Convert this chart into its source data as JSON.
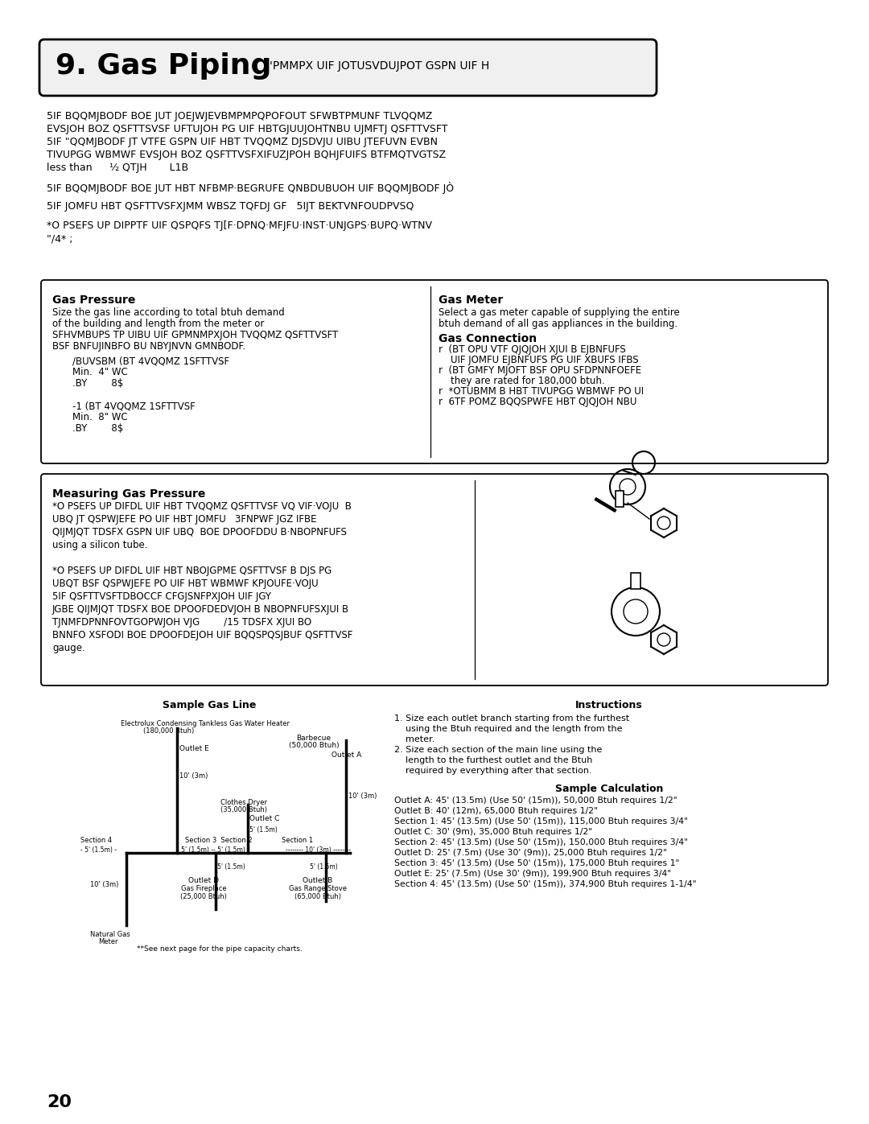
{
  "page_bg": "#ffffff",
  "title_box_text": "9. Gas Piping",
  "title_box_subtext": "'PMMPX UIF JOTUSVDUJPOT GSPN UIF H",
  "body_lines": [
    "5IF BQQMJBODF BOE JUT JOEJWJEVBMPMPQPOFOUT SFWBTPMUNF TLVQQMZ",
    "EVSJOH BOZ QSFTTSVSF UFTUJOH PG UIF HBTGJUUJOHTNBU UJMFTJ QSFTTVSFT",
    "5IF \"QQMJBODF JT VTFE GSPN UIF HBT TVQQMZ DJSDVJU UIBU JTEFUVN EVBN",
    "TIVUPGG WBMWF EVSJOH BOZ QSFTTVSFXIFUZJPOH BQHJFUIFS BTFMQTVGTSZ"
  ],
  "body_line_fraction": "less than ½ QTJH       L1B",
  "body_line2": "5IF BQQMJBODF BOE JUT HBT NFBMP·BEGRUFE QNBDUBUOH UIF BQQMJBODF JÒ",
  "body_line3": "5IF JOMFU HBT QSFTTVSFXJMM WBSZ TQFDJ GF   5IJT BEKTVNFOUDPVSQ",
  "body_line4": "*O PSEFS UP DIPPTF UIF QSPQFS TJ[F·DPNQ·MFJFU·INST·UNJGPS·BUPQ·WTNV",
  "body_line5": "\"/4* ;",
  "box1_header_left": "Gas Pressure",
  "box1_header_right": "Gas Meter",
  "box1_left_lines": [
    "Size the gas line according to total btuh demand",
    "of the building and length from the meter or",
    "SFHVMBUPS TP UIBU UIF GPMNMPXJOH TVQQMZ QSFTTVSFT",
    "BSF BNFUJINBFO BU NBYJNVN GMNBODF."
  ],
  "box1_left_indent_lines": [
    "/BUVSBM (BT 4VQQMZ 1SFTTVSF",
    "Min.  4\" WC",
    ".BY        8$",
    "",
    "-1 (BT 4VQQMZ 1SFTTVSF",
    "Min.  8\" WC",
    ".BY        8$"
  ],
  "box1_right_lines": [
    "Select a gas meter capable of supplying the entire",
    "btuh demand of all gas appliances in the building."
  ],
  "box1_right_header2": "Gas Connection",
  "box1_right_lines2": [
    "r  (BT OPU VTF QJQJOH XJUI B EJBNFUFS",
    "    UIF JOMFU EJBNFUFS PG UIF XBUFS IFBS",
    "r  (BT GMFY MJOFT BSF OPU SFDPNNFOEFE",
    "    they are rated for 180,000 btuh.",
    "r  *OTUBMM B HBT TIVUPGG WBMWF PO UI",
    "r  6TF POMZ BQQSPWFE HBT QJQJOH NBU"
  ],
  "box2_header": "Measuring Gas Pressure",
  "box2_col1_lines": [
    "*O PSEFS UP DIFDL UIF HBT TVQQMZ QSFTTVSF",
    "UBQ JT QSPWJEFE PO UIF HBT JOMFU",
    "QIJMJQT TDSFX GSPN UIF UBQ  BOE DPOOFDDU",
    "using a silicon tube.",
    "",
    "*O PSEFS UP DIFDL UIF HBT NBOJGPME QSFTTVSF",
    "UBQT BSF QSPWJEFE PO UIF HBT WBMWF KPJOUFE",
    "5IF QSFTTVSFTDBOCCF CFGJSNFPXJOH UIF JGY",
    "JGBE QIJMJQT TDSFX BOE DPOOFDEDVJOH B",
    "TJNMFDPNNFOVTGOPWJOH VJG        /15 TDSFX",
    "BNNFO XSFODI BOE DPOOFDEJOH UIF BQQSPQ",
    "gauge."
  ],
  "box2_col1_full_lines": [
    "*O PSEFS UP DIFDL UIF HBT TVQQMZ QSFTTVSF VQ VIF·VOJU  B",
    "UBQ JT QSPWJEFE PO UIF HBT JOMFU   3FNPWF JGZ IFBE",
    "QIJMJQT TDSFX GSPN UIF UBQ  BOE DPOOFDDU B·NBOPNFUFS",
    "using a silicon tube.",
    "",
    "*O PSEFS UP DIFDL UIF HBT NBOJGPME QSFTTVSF B DJS PG",
    "UBQT BSF QSPWJEFE PO UIF HBT WBMWF KPJOUFE·VOJU",
    "5IF QSFTTVSFTDBOCCF CFGJSNFPXJOH UIF JGY",
    "JGBE QIJMJQT TDSFX BOE DPOOFDEDVJOH B NBOPNFUFSXJUI B",
    "TJNMFDPNNFOVTGOPWJOH VJG        /15 TDSFX XJUI BO",
    "BNNFO XSFODI BOE DPOOFDEJOH UIF BQQSPQSJBUF QSFTTVSF",
    "gauge."
  ],
  "diagram_title": "Sample Gas Line",
  "instructions_title": "Instructions",
  "instructions_lines": [
    "1. Size each outlet branch starting from the furthest",
    "    using the Btuh required and the length from the",
    "    meter.",
    "2. Size each section of the main line using the",
    "    length to the furthest outlet and the Btuh",
    "    required by everything after that section."
  ],
  "sample_calc_title": "Sample Calculation",
  "sample_calc_lines": [
    "Outlet A: 45' (13.5m) (Use 50' (15m)), 50,000 Btuh requires 1/2\"",
    "Outlet B: 40' (12m), 65,000 Btuh requires 1/2\"",
    "Section 1: 45' (13.5m) (Use 50' (15m)), 115,000 Btuh requires 3/4\"",
    "Outlet C: 30' (9m), 35,000 Btuh requires 1/2\"",
    "Section 2: 45' (13.5m) (Use 50' (15m)), 150,000 Btuh requires 3/4\"",
    "Outlet D: 25' (7.5m) (Use 30' (9m)), 25,000 Btuh requires 1/2\"",
    "Section 3: 45' (13.5m) (Use 50' (15m)), 175,000 Btuh requires 1\"",
    "Outlet E: 25' (7.5m) (Use 30' (9m)), 199,900 Btuh requires 3/4\"",
    "Section 4: 45' (13.5m) (Use 50' (15m)), 374,900 Btuh requires 1-1/4\""
  ],
  "page_number": "20",
  "note_text": "**See next page for the pipe capacity charts."
}
